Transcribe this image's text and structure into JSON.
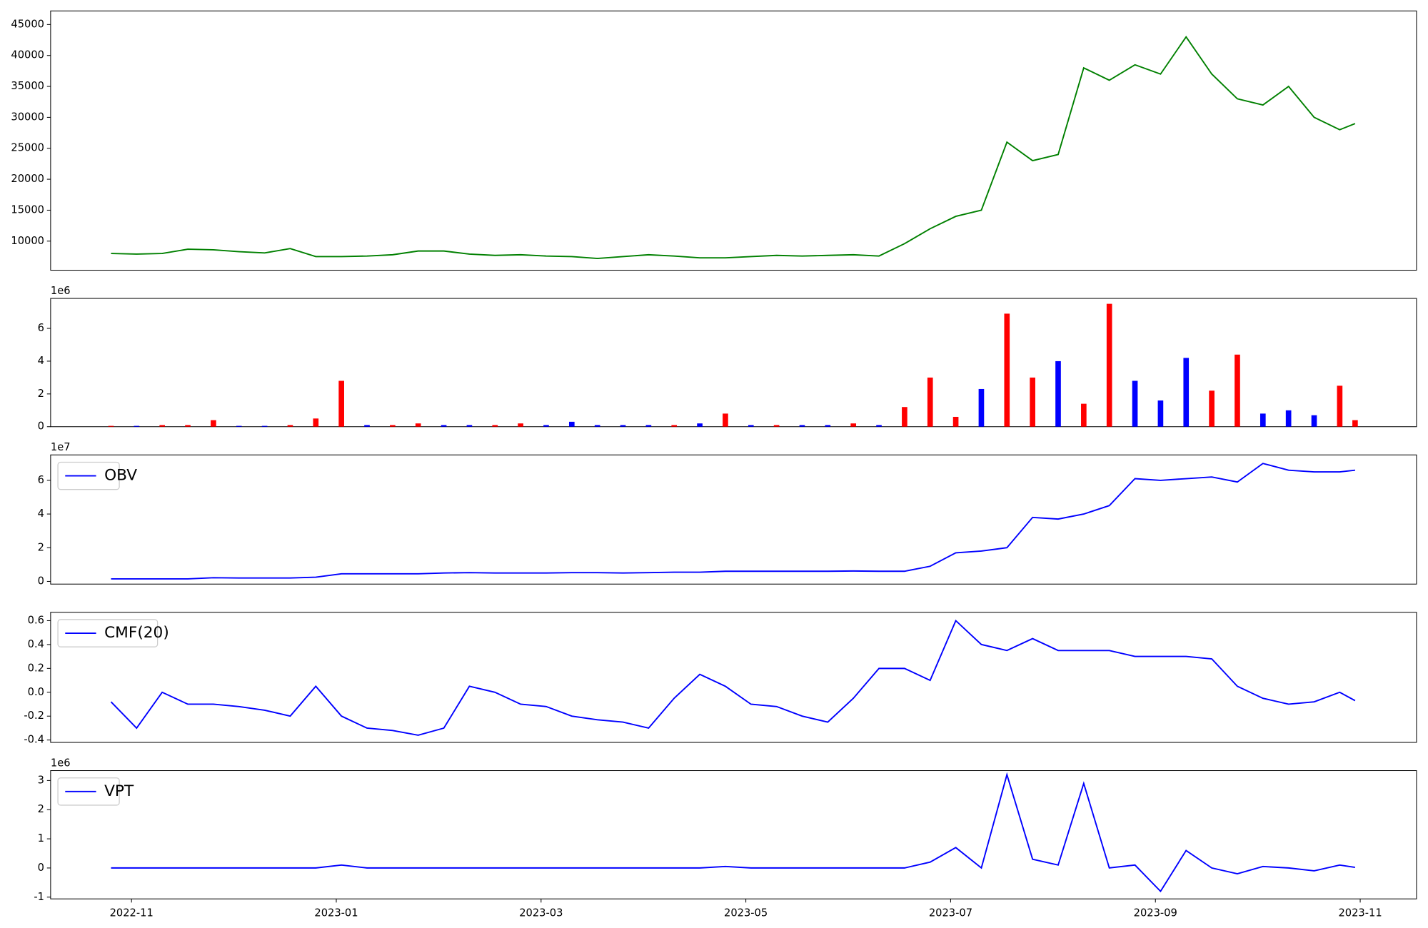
{
  "chart_data": [
    {
      "type": "line",
      "color": "#008000",
      "x": [
        -0.2,
        0.05,
        0.3,
        0.55,
        0.8,
        1.05,
        1.3,
        1.55,
        1.8,
        2.05,
        2.3,
        2.55,
        2.8,
        3.05,
        3.3,
        3.55,
        3.8,
        4.05,
        4.3,
        4.55,
        4.8,
        5.05,
        5.3,
        5.55,
        5.8,
        6.05,
        6.3,
        6.55,
        6.8,
        7.05,
        7.3,
        7.55,
        7.8,
        8.05,
        8.3,
        8.55,
        8.8,
        9.05,
        9.3,
        9.55,
        9.8,
        10.05,
        10.3,
        10.55,
        10.8,
        11.05,
        11.3,
        11.55,
        11.8,
        11.95
      ],
      "values": [
        8000,
        7900,
        8000,
        8700,
        8600,
        8300,
        8100,
        8800,
        7500,
        7500,
        7600,
        7800,
        8400,
        8400,
        7900,
        7700,
        7800,
        7600,
        7500,
        7200,
        7500,
        7800,
        7600,
        7300,
        7300,
        7500,
        7700,
        7600,
        7700,
        7800,
        7600,
        9600,
        12000,
        14000,
        15000,
        26000,
        23000,
        24000,
        38000,
        36000,
        38500,
        37000,
        43000,
        37000,
        33000,
        32000,
        35000,
        30000,
        28000,
        29000
      ],
      "xlim": [
        -0.79,
        12.55
      ],
      "ylim": [
        5300,
        47200
      ],
      "yticks": [
        10000,
        15000,
        20000,
        25000,
        30000,
        35000,
        40000,
        45000
      ]
    },
    {
      "type": "bar",
      "y_offset_label": "1e6",
      "x": [
        -0.2,
        0.05,
        0.3,
        0.55,
        0.8,
        1.05,
        1.3,
        1.55,
        1.8,
        2.05,
        2.3,
        2.55,
        2.8,
        3.05,
        3.3,
        3.55,
        3.8,
        4.05,
        4.3,
        4.55,
        4.8,
        5.05,
        5.3,
        5.55,
        5.8,
        6.05,
        6.3,
        6.55,
        6.8,
        7.05,
        7.3,
        7.55,
        7.8,
        8.05,
        8.3,
        8.55,
        8.8,
        9.05,
        9.3,
        9.55,
        9.8,
        10.05,
        10.3,
        10.55,
        10.8,
        11.05,
        11.3,
        11.55,
        11.8,
        11.95
      ],
      "values": [
        0.05,
        0.05,
        0.1,
        0.1,
        0.4,
        0.05,
        0.05,
        0.1,
        0.5,
        2.8,
        0.1,
        0.1,
        0.2,
        0.1,
        0.1,
        0.1,
        0.2,
        0.1,
        0.3,
        0.1,
        0.1,
        0.1,
        0.1,
        0.2,
        0.8,
        0.1,
        0.1,
        0.1,
        0.1,
        0.2,
        0.1,
        1.2,
        3.0,
        0.6,
        2.3,
        6.9,
        3.0,
        4.0,
        1.4,
        7.5,
        2.8,
        1.6,
        4.2,
        2.2,
        4.4,
        0.8,
        1.0,
        0.7,
        2.5,
        0.4
      ],
      "colors": [
        "#ff0000",
        "#0000ff",
        "#ff0000",
        "#ff0000",
        "#ff0000",
        "#0000ff",
        "#0000ff",
        "#ff0000",
        "#ff0000",
        "#ff0000",
        "#0000ff",
        "#ff0000",
        "#ff0000",
        "#0000ff",
        "#0000ff",
        "#ff0000",
        "#ff0000",
        "#0000ff",
        "#0000ff",
        "#0000ff",
        "#0000ff",
        "#0000ff",
        "#ff0000",
        "#0000ff",
        "#ff0000",
        "#0000ff",
        "#ff0000",
        "#0000ff",
        "#0000ff",
        "#ff0000",
        "#0000ff",
        "#ff0000",
        "#ff0000",
        "#ff0000",
        "#0000ff",
        "#ff0000",
        "#ff0000",
        "#0000ff",
        "#ff0000",
        "#ff0000",
        "#0000ff",
        "#0000ff",
        "#0000ff",
        "#ff0000",
        "#ff0000",
        "#0000ff",
        "#0000ff",
        "#0000ff",
        "#ff0000",
        "#ff0000"
      ],
      "xlim": [
        -0.79,
        12.55
      ],
      "ylim": [
        0,
        7.83
      ],
      "yticks": [
        0,
        2,
        4,
        6
      ]
    },
    {
      "type": "line",
      "y_offset_label": "1e7",
      "legend": "upper left",
      "x": [
        -0.2,
        0.05,
        0.3,
        0.55,
        0.8,
        1.05,
        1.3,
        1.55,
        1.8,
        2.05,
        2.3,
        2.55,
        2.8,
        3.05,
        3.3,
        3.55,
        3.8,
        4.05,
        4.3,
        4.55,
        4.8,
        5.05,
        5.3,
        5.55,
        5.8,
        6.05,
        6.3,
        6.55,
        6.8,
        7.05,
        7.3,
        7.55,
        7.8,
        8.05,
        8.3,
        8.55,
        8.8,
        9.05,
        9.3,
        9.55,
        9.8,
        10.05,
        10.3,
        10.55,
        10.8,
        11.05,
        11.3,
        11.55,
        11.8,
        11.95
      ],
      "series": [
        {
          "name": "OBV",
          "color": "#0000ff",
          "values": [
            0.15,
            0.15,
            0.15,
            0.15,
            0.22,
            0.2,
            0.2,
            0.2,
            0.25,
            0.45,
            0.45,
            0.45,
            0.45,
            0.5,
            0.52,
            0.5,
            0.5,
            0.5,
            0.52,
            0.52,
            0.5,
            0.52,
            0.55,
            0.55,
            0.6,
            0.6,
            0.6,
            0.6,
            0.6,
            0.62,
            0.6,
            0.6,
            0.9,
            1.7,
            1.8,
            2.0,
            3.8,
            3.7,
            4.0,
            4.5,
            6.1,
            6.0,
            6.1,
            6.2,
            5.9,
            7.0,
            6.6,
            6.5,
            6.5,
            6.6
          ]
        }
      ],
      "xlim": [
        -0.79,
        12.55
      ],
      "ylim": [
        -0.16,
        7.51
      ],
      "yticks": [
        0,
        2,
        4,
        6
      ]
    },
    {
      "type": "line",
      "legend": "upper left",
      "x": [
        -0.2,
        0.05,
        0.3,
        0.55,
        0.8,
        1.05,
        1.3,
        1.55,
        1.8,
        2.05,
        2.3,
        2.55,
        2.8,
        3.05,
        3.3,
        3.55,
        3.8,
        4.05,
        4.3,
        4.55,
        4.8,
        5.05,
        5.3,
        5.55,
        5.8,
        6.05,
        6.3,
        6.55,
        6.8,
        7.05,
        7.3,
        7.55,
        7.8,
        8.05,
        8.3,
        8.55,
        8.8,
        9.05,
        9.3,
        9.55,
        9.8,
        10.05,
        10.3,
        10.55,
        10.8,
        11.05,
        11.3,
        11.55,
        11.8,
        11.95
      ],
      "series": [
        {
          "name": "CMF(20)",
          "color": "#0000ff",
          "values": [
            -0.08,
            -0.3,
            0.0,
            -0.1,
            -0.1,
            -0.12,
            -0.15,
            -0.2,
            0.05,
            -0.2,
            -0.3,
            -0.32,
            -0.36,
            -0.3,
            0.05,
            0.0,
            -0.1,
            -0.12,
            -0.2,
            -0.23,
            -0.25,
            -0.3,
            -0.05,
            0.15,
            0.05,
            -0.1,
            -0.12,
            -0.2,
            -0.25,
            -0.05,
            0.2,
            0.2,
            0.1,
            0.6,
            0.4,
            0.35,
            0.45,
            0.35,
            0.35,
            0.35,
            0.3,
            0.3,
            0.3,
            0.28,
            0.05,
            -0.05,
            -0.1,
            -0.08,
            0.0,
            -0.07
          ]
        }
      ],
      "xlim": [
        -0.79,
        12.55
      ],
      "ylim": [
        -0.42,
        0.67
      ],
      "yticks": [
        -0.4,
        -0.2,
        {
          "value": 0,
          "label": "0.0"
        },
        0.2,
        0.4,
        0.6
      ]
    },
    {
      "type": "line",
      "y_offset_label": "1e6",
      "legend": "upper left",
      "x": [
        -0.2,
        0.05,
        0.3,
        0.55,
        0.8,
        1.05,
        1.3,
        1.55,
        1.8,
        2.05,
        2.3,
        2.55,
        2.8,
        3.05,
        3.3,
        3.55,
        3.8,
        4.05,
        4.3,
        4.55,
        4.8,
        5.05,
        5.3,
        5.55,
        5.8,
        6.05,
        6.3,
        6.55,
        6.8,
        7.05,
        7.3,
        7.55,
        7.8,
        8.05,
        8.3,
        8.55,
        8.8,
        9.05,
        9.3,
        9.55,
        9.8,
        10.05,
        10.3,
        10.55,
        10.8,
        11.05,
        11.3,
        11.55,
        11.8,
        11.95
      ],
      "series": [
        {
          "name": "VPT",
          "color": "#0000ff",
          "values": [
            0,
            0,
            0,
            0,
            0,
            0,
            0,
            0,
            0,
            0.1,
            0,
            0,
            0,
            0,
            0,
            0,
            0,
            0,
            0,
            0,
            0,
            0,
            0,
            0,
            0.05,
            0,
            0,
            0,
            0,
            0,
            0,
            0,
            0.2,
            0.7,
            0,
            3.2,
            0.3,
            0.1,
            2.9,
            0,
            0.1,
            -0.8,
            0.6,
            0,
            -0.2,
            0.05,
            0,
            -0.1,
            0.1,
            0.02
          ]
        }
      ],
      "xlim": [
        -0.79,
        12.55
      ],
      "ylim": [
        -1.06,
        3.34
      ],
      "yticks": [
        -1,
        0,
        1,
        2,
        3
      ],
      "xticks": [
        {
          "value": 0,
          "label": "2022-11"
        },
        {
          "value": 2,
          "label": "2023-01"
        },
        {
          "value": 4,
          "label": "2023-03"
        },
        {
          "value": 6,
          "label": "2023-05"
        },
        {
          "value": 8,
          "label": "2023-07"
        },
        {
          "value": 10,
          "label": "2023-09"
        },
        {
          "value": 12,
          "label": "2023-11"
        }
      ]
    }
  ]
}
